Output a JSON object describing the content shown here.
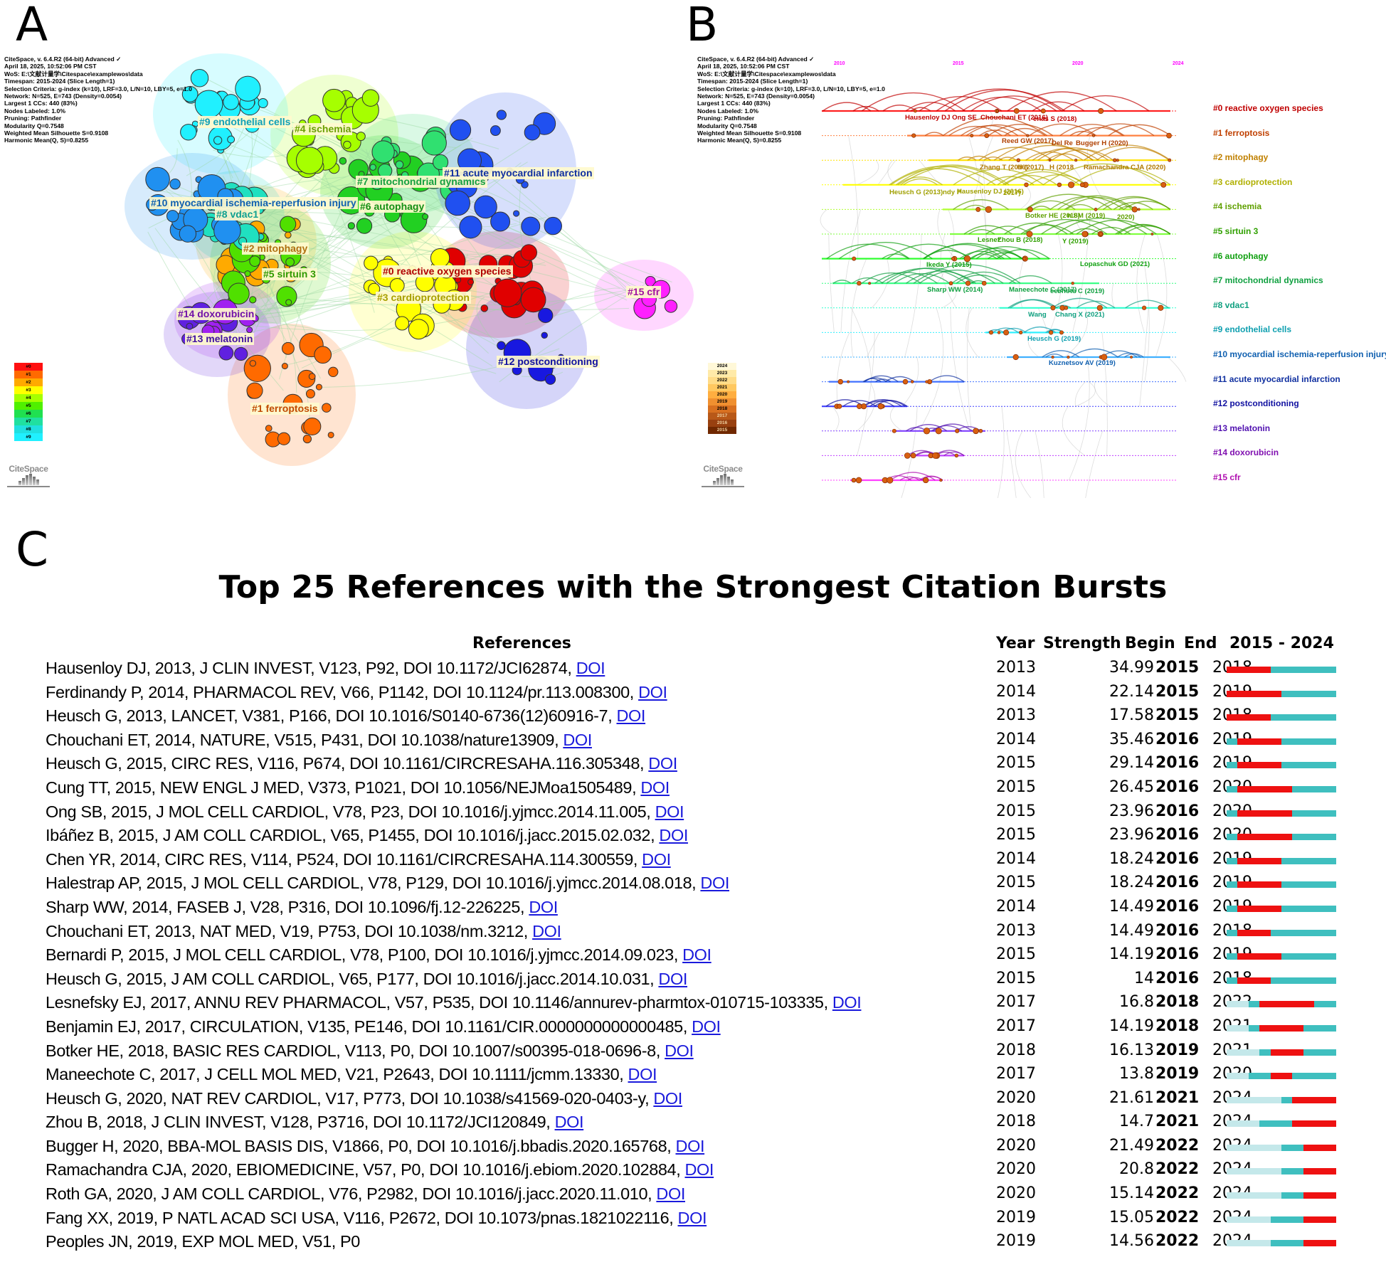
{
  "panels": {
    "a": {
      "letter": "A"
    },
    "b": {
      "letter": "B"
    },
    "c": {
      "letter": "C"
    }
  },
  "citespace_meta": {
    "lines": [
      "CiteSpace, v. 6.4.R2 (64-bit) Advanced ✓",
      "April 18, 2025, 10:52:06 PM CST",
      "WoS: E:\\文献计量学\\Citespace\\examplewos\\data",
      "Timespan: 2015-2024 (Slice Length=1)",
      "Selection Criteria: g-index (k=10), LRF=3.0, L/N=10, LBY=5, e=1.0",
      "Network: N=525, E=743 (Density=0.0054)",
      "Largest 1 CCs: 440 (83%)",
      "Nodes Labeled: 1.0%",
      "Pruning: Pathfinder",
      "Modularity Q=0.7548",
      "Weighted Mean Silhouette S=0.9108",
      "Harmonic Mean(Q, S)=0.8255"
    ]
  },
  "logo": {
    "text": "CiteSpace"
  },
  "cluster_map": {
    "clusters": [
      {
        "id": "#0",
        "label": "#0 reactive oxygen species",
        "color": "#e00000",
        "text_color": "#b00000"
      },
      {
        "id": "#1",
        "label": "#1 ferroptosis",
        "color": "#ff6a00",
        "text_color": "#c04a00"
      },
      {
        "id": "#2",
        "label": "#2 mitophagy",
        "color": "#ffaa00",
        "text_color": "#b07010"
      },
      {
        "id": "#3",
        "label": "#3 cardioprotection",
        "color": "#ffff00",
        "text_color": "#a8a000"
      },
      {
        "id": "#4",
        "label": "#4 ischemia",
        "color": "#a6ff00",
        "text_color": "#6aa000"
      },
      {
        "id": "#5",
        "label": "#5 sirtuin 3",
        "color": "#50e000",
        "text_color": "#2f9a00"
      },
      {
        "id": "#6",
        "label": "#6 autophagy",
        "color": "#22d022",
        "text_color": "#159015"
      },
      {
        "id": "#7",
        "label": "#7 mitochondrial dynamics",
        "color": "#30e070",
        "text_color": "#15a040"
      },
      {
        "id": "#8",
        "label": "#8 vdac1",
        "color": "#20e0c0",
        "text_color": "#10a090"
      },
      {
        "id": "#9",
        "label": "#9 endothelial cells",
        "color": "#20f0ff",
        "text_color": "#10a0b8"
      },
      {
        "id": "#10",
        "label": "#10 myocardial ischemia-reperfusion injury",
        "color": "#2090f0",
        "text_color": "#1060b0"
      },
      {
        "id": "#11",
        "label": "#11 acute myocardial infarction",
        "color": "#2050f0",
        "text_color": "#1030a0"
      },
      {
        "id": "#12",
        "label": "#12 postconditioning",
        "color": "#1818e0",
        "text_color": "#1010a0"
      },
      {
        "id": "#13",
        "label": "#13 melatonin",
        "color": "#6020e0",
        "text_color": "#4010a0"
      },
      {
        "id": "#14",
        "label": "#14 doxorubicin",
        "color": "#a020f0",
        "text_color": "#7010a8"
      },
      {
        "id": "#15",
        "label": "#15 cfr",
        "color": "#ff20ff",
        "text_color": "#a010a0"
      }
    ],
    "legend": [
      "#0",
      "#1",
      "#2",
      "#3",
      "#4",
      "#5",
      "#6",
      "#7",
      "#8",
      "#9"
    ],
    "legend_colors": [
      "#ff1010",
      "#ff6a00",
      "#ffaa00",
      "#ffff00",
      "#a6ff00",
      "#50f000",
      "#20e050",
      "#20e0a0",
      "#20e0e0",
      "#20f0ff"
    ]
  },
  "timeline": {
    "year_ticks": [
      "2010",
      "2015",
      "2020",
      "2024"
    ],
    "legend_years": [
      "2024",
      "2023",
      "2022",
      "2021",
      "2020",
      "2019",
      "2018",
      "2017",
      "2016",
      "2015"
    ],
    "legend_colors": [
      "#fff8d8",
      "#ffeaa8",
      "#ffdc88",
      "#ffc860",
      "#ffae40",
      "#f09030",
      "#d87020",
      "#b85818",
      "#984010",
      "#702800"
    ],
    "rows": [
      {
        "label": "#0 reactive oxygen species",
        "color": "#c00000",
        "line": "#ff2020"
      },
      {
        "label": "#1 ferroptosis",
        "color": "#c04000",
        "line": "#ff8040"
      },
      {
        "label": "#2 mitophagy",
        "color": "#c08000",
        "line": "#ffe000"
      },
      {
        "label": "#3 cardioprotection",
        "color": "#b0b000",
        "line": "#ffff00"
      },
      {
        "label": "#4 ischemia",
        "color": "#60a000",
        "line": "#b0ff30"
      },
      {
        "label": "#5 sirtuin 3",
        "color": "#30a000",
        "line": "#80ff40"
      },
      {
        "label": "#6 autophagy",
        "color": "#10a010",
        "line": "#30ff30"
      },
      {
        "label": "#7 mitochondrial dynamics",
        "color": "#10a040",
        "line": "#30ff80"
      },
      {
        "label": "#8 vdac1",
        "color": "#10a080",
        "line": "#30ffd0"
      },
      {
        "label": "#9 endothelial cells",
        "color": "#10a0b0",
        "line": "#30f0ff"
      },
      {
        "label": "#10 myocardial ischemia-reperfusion injury",
        "color": "#1060b0",
        "line": "#40b0ff"
      },
      {
        "label": "#11 acute myocardial infarction",
        "color": "#1030a0",
        "line": "#4070ff"
      },
      {
        "label": "#12 postconditioning",
        "color": "#1010a0",
        "line": "#4040ff"
      },
      {
        "label": "#13 melatonin",
        "color": "#5010b0",
        "line": "#8040ff"
      },
      {
        "label": "#14 doxorubicin",
        "color": "#8010b0",
        "line": "#c040ff"
      },
      {
        "label": "#15 cfr",
        "color": "#b010b0",
        "line": "#ff40ff"
      }
    ],
    "node_labels": [
      {
        "text": "Hausenloy DJ Ong SE",
        "color": "#c00000"
      },
      {
        "text": "Chouchani ET (2016)",
        "color": "#c00000"
      },
      {
        "text": "enas S (2018)",
        "color": "#c00000"
      },
      {
        "text": "Reed GW (2017)",
        "color": "#b04000"
      },
      {
        "text": "Del Re",
        "color": "#b04000"
      },
      {
        "text": "Bugger H (2020)",
        "color": "#b04000"
      },
      {
        "text": "Zhang T (2016)",
        "color": "#b07800"
      },
      {
        "text": "H (2017)",
        "color": "#b07800"
      },
      {
        "text": "H (2018",
        "color": "#b07800"
      },
      {
        "text": "Ramachandra CJA (2020)",
        "color": "#b07800"
      },
      {
        "text": "Heusch G (2013)",
        "color": "#a0a000"
      },
      {
        "text": "ndy P",
        "color": "#a0a000"
      },
      {
        "text": "Hausenloy DJ (2016)",
        "color": "#a0a000"
      },
      {
        "text": "2017)",
        "color": "#a0a000"
      },
      {
        "text": "Botker HE (2018)",
        "color": "#60a000"
      },
      {
        "text": "n SM (2019)",
        "color": "#60a000"
      },
      {
        "text": "2020)",
        "color": "#60a000"
      },
      {
        "text": "Lesnef",
        "color": "#30a000"
      },
      {
        "text": "Zhou B (2018)",
        "color": "#30a000"
      },
      {
        "text": "Y (2019)",
        "color": "#30a000"
      },
      {
        "text": "Ikeda Y (2015)",
        "color": "#10a010"
      },
      {
        "text": "Lopaschuk GD (2021)",
        "color": "#10a010"
      },
      {
        "text": "Sharp WW (2014)",
        "color": "#10a040"
      },
      {
        "text": "Maneechote C (2017)",
        "color": "#10a040"
      },
      {
        "text": "eechote C (2019)",
        "color": "#10a040"
      },
      {
        "text": "Wang",
        "color": "#10a080"
      },
      {
        "text": "Chang X (2021)",
        "color": "#10a080"
      },
      {
        "text": "Heusch G (2019)",
        "color": "#10a0b0"
      },
      {
        "text": "Kuznetsov AV (2019)",
        "color": "#1060b0"
      }
    ]
  },
  "burst_table": {
    "title": "Top 25 References with the Strongest Citation Bursts",
    "headers": {
      "references": "References",
      "year": "Year",
      "strength": "Strength",
      "begin": "Begin",
      "end": "End",
      "range": "2015 - 2024"
    },
    "link_text": "DOI",
    "range_start": 2015,
    "range_end": 2024,
    "colors": {
      "burst": "#ee1111",
      "active": "#3fbfbf",
      "inactive": "#c4e8ea"
    }
  },
  "chart_data": {
    "type": "table",
    "title": "Top 25 References with the Strongest Citation Bursts",
    "columns": [
      "References",
      "Year",
      "Strength",
      "Begin",
      "End",
      "2015 - 2024"
    ],
    "rows": [
      {
        "ref": "Hausenloy DJ, 2013, J CLIN INVEST, V123, P92, DOI 10.1172/JCI62874, ",
        "year": 2013,
        "strength": 34.99,
        "begin": 2015,
        "end": 2018
      },
      {
        "ref": "Ferdinandy P, 2014, PHARMACOL REV, V66, P1142, DOI 10.1124/pr.113.008300, ",
        "year": 2014,
        "strength": 22.14,
        "begin": 2015,
        "end": 2019
      },
      {
        "ref": "Heusch G, 2013, LANCET, V381, P166, DOI 10.1016/S0140-6736(12)60916-7, ",
        "year": 2013,
        "strength": 17.58,
        "begin": 2015,
        "end": 2018
      },
      {
        "ref": "Chouchani ET, 2014, NATURE, V515, P431, DOI 10.1038/nature13909, ",
        "year": 2014,
        "strength": 35.46,
        "begin": 2016,
        "end": 2019
      },
      {
        "ref": "Heusch G, 2015, CIRC RES, V116, P674, DOI 10.1161/CIRCRESAHA.116.305348, ",
        "year": 2015,
        "strength": 29.14,
        "begin": 2016,
        "end": 2019
      },
      {
        "ref": "Cung TT, 2015, NEW ENGL J MED, V373, P1021, DOI 10.1056/NEJMoa1505489, ",
        "year": 2015,
        "strength": 26.45,
        "begin": 2016,
        "end": 2020
      },
      {
        "ref": "Ong SB, 2015, J MOL CELL CARDIOL, V78, P23, DOI 10.1016/j.yjmcc.2014.11.005, ",
        "year": 2015,
        "strength": 23.96,
        "begin": 2016,
        "end": 2020
      },
      {
        "ref": "Ibáñez B, 2015, J AM COLL CARDIOL, V65, P1455, DOI 10.1016/j.jacc.2015.02.032, ",
        "year": 2015,
        "strength": 23.96,
        "begin": 2016,
        "end": 2020
      },
      {
        "ref": "Chen YR, 2014, CIRC RES, V114, P524, DOI 10.1161/CIRCRESAHA.114.300559, ",
        "year": 2014,
        "strength": 18.24,
        "begin": 2016,
        "end": 2019
      },
      {
        "ref": "Halestrap AP, 2015, J MOL CELL CARDIOL, V78, P129, DOI 10.1016/j.yjmcc.2014.08.018, ",
        "year": 2015,
        "strength": 18.24,
        "begin": 2016,
        "end": 2019
      },
      {
        "ref": "Sharp WW, 2014, FASEB J, V28, P316, DOI 10.1096/fj.12-226225, ",
        "year": 2014,
        "strength": 14.49,
        "begin": 2016,
        "end": 2019
      },
      {
        "ref": "Chouchani ET, 2013, NAT MED, V19, P753, DOI 10.1038/nm.3212, ",
        "year": 2013,
        "strength": 14.49,
        "begin": 2016,
        "end": 2018
      },
      {
        "ref": "Bernardi P, 2015, J MOL CELL CARDIOL, V78, P100, DOI 10.1016/j.yjmcc.2014.09.023, ",
        "year": 2015,
        "strength": 14.19,
        "begin": 2016,
        "end": 2019
      },
      {
        "ref": "Heusch G, 2015, J AM COLL CARDIOL, V65, P177, DOI 10.1016/j.jacc.2014.10.031, ",
        "year": 2015,
        "strength": 14,
        "begin": 2016,
        "end": 2018
      },
      {
        "ref": "Lesnefsky EJ, 2017, ANNU REV PHARMACOL, V57, P535, DOI 10.1146/annurev-pharmtox-010715-103335, ",
        "year": 2017,
        "strength": 16.8,
        "begin": 2018,
        "end": 2022
      },
      {
        "ref": "Benjamin EJ, 2017, CIRCULATION, V135, PE146, DOI 10.1161/CIR.0000000000000485, ",
        "year": 2017,
        "strength": 14.19,
        "begin": 2018,
        "end": 2021
      },
      {
        "ref": "Botker HE, 2018, BASIC RES CARDIOL, V113, P0, DOI 10.1007/s00395-018-0696-8, ",
        "year": 2018,
        "strength": 16.13,
        "begin": 2019,
        "end": 2021
      },
      {
        "ref": "Maneechote C, 2017, J CELL MOL MED, V21, P2643, DOI 10.1111/jcmm.13330, ",
        "year": 2017,
        "strength": 13.8,
        "begin": 2019,
        "end": 2020
      },
      {
        "ref": "Heusch G, 2020, NAT REV CARDIOL, V17, P773, DOI 10.1038/s41569-020-0403-y, ",
        "year": 2020,
        "strength": 21.61,
        "begin": 2021,
        "end": 2024
      },
      {
        "ref": "Zhou B, 2018, J CLIN INVEST, V128, P3716, DOI 10.1172/JCI120849, ",
        "year": 2018,
        "strength": 14.7,
        "begin": 2021,
        "end": 2024
      },
      {
        "ref": "Bugger H, 2020, BBA-MOL BASIS DIS, V1866, P0, DOI 10.1016/j.bbadis.2020.165768, ",
        "year": 2020,
        "strength": 21.49,
        "begin": 2022,
        "end": 2024
      },
      {
        "ref": "Ramachandra CJA, 2020, EBIOMEDICINE, V57, P0, DOI 10.1016/j.ebiom.2020.102884, ",
        "year": 2020,
        "strength": 20.8,
        "begin": 2022,
        "end": 2024
      },
      {
        "ref": "Roth GA, 2020, J AM COLL CARDIOL, V76, P2982, DOI 10.1016/j.jacc.2020.11.010, ",
        "year": 2020,
        "strength": 15.14,
        "begin": 2022,
        "end": 2024
      },
      {
        "ref": "Fang XX, 2019, P NATL ACAD SCI USA, V116, P2672, DOI 10.1073/pnas.1821022116, ",
        "year": 2019,
        "strength": 15.05,
        "begin": 2022,
        "end": 2024
      },
      {
        "ref": "Peoples JN, 2019, EXP MOL MED, V51, P0",
        "year": 2019,
        "strength": 14.56,
        "begin": 2022,
        "end": 2024
      }
    ]
  }
}
